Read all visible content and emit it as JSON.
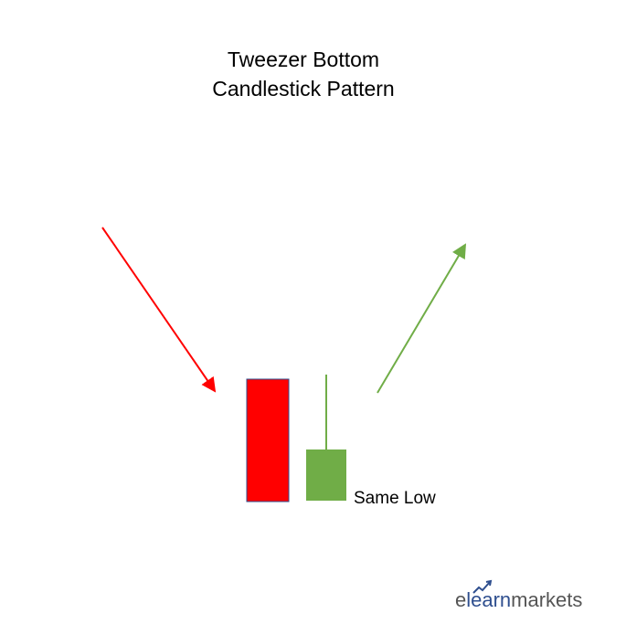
{
  "title": {
    "line1": "Tweezer Bottom",
    "line2": "Candlestick Pattern"
  },
  "diagram": {
    "label": "Same Low",
    "colors": {
      "bearish": "#ff0000",
      "bullish": "#70ad47",
      "border": "#2f4f8f"
    }
  },
  "brand": {
    "part1": "e",
    "part2": "learn",
    "part3": "markets",
    "icon": "arrow-growth-icon"
  }
}
